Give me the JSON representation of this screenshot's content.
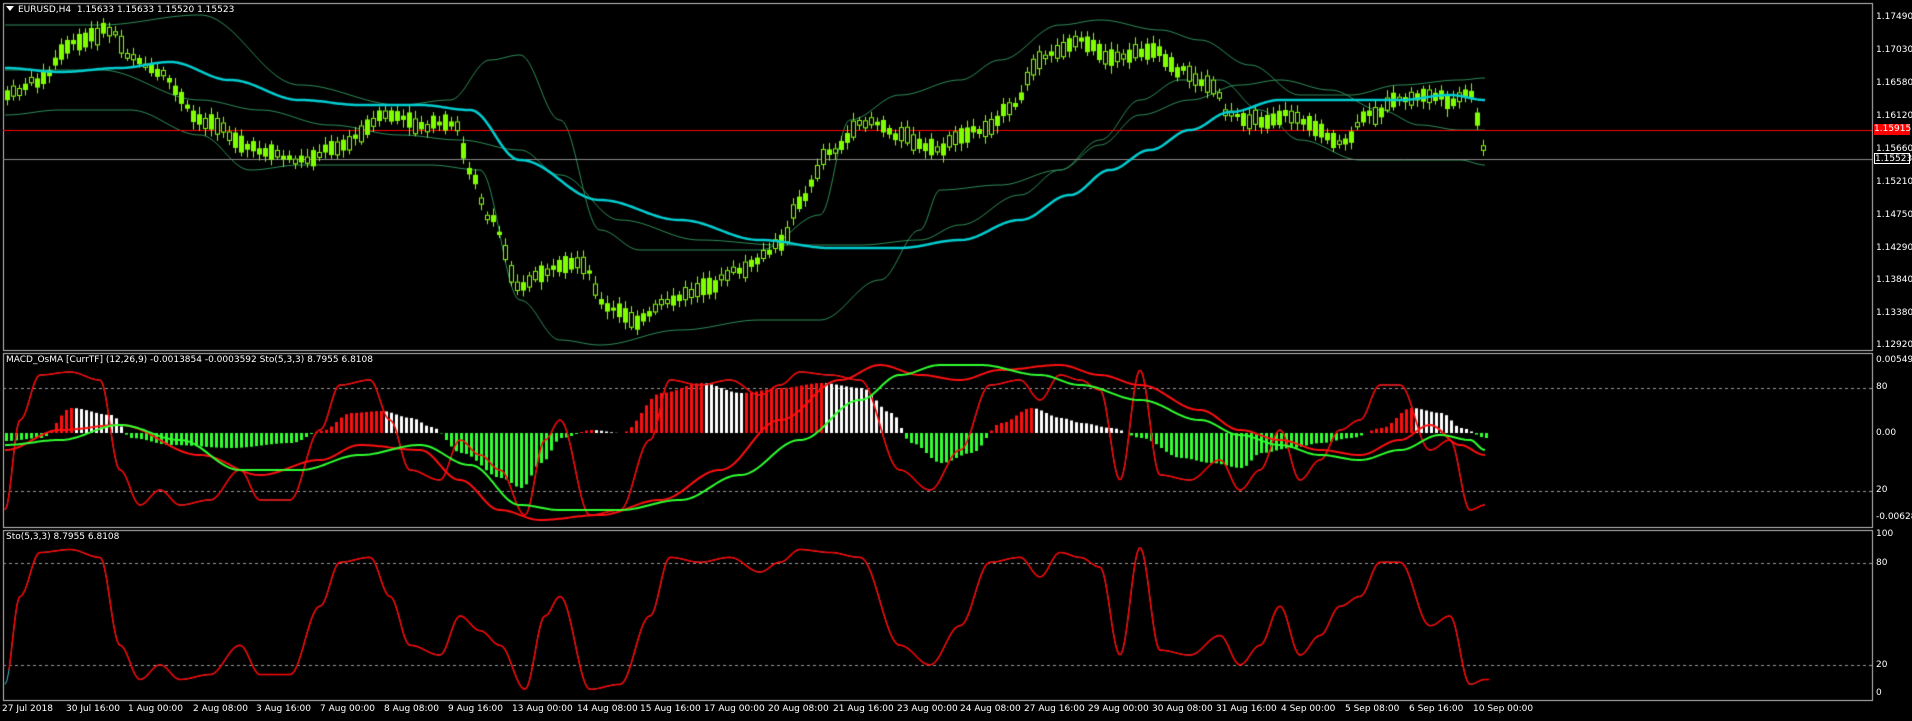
{
  "main_panel": {
    "symbol_label": "EURUSD,H4",
    "ohlc": "1.15633 1.15633 1.15520 1.15523",
    "price_ticks": [
      "1.17490",
      "1.17030",
      "1.16580",
      "1.16120",
      "1.15660",
      "1.15210",
      "1.14750",
      "1.14290",
      "1.13840",
      "1.13380",
      "1.12920"
    ],
    "red_line_price": "1.15915",
    "current_price": "1.15523"
  },
  "macd_panel": {
    "label": "MACD_OsMA [CurrTF] (12,26,9) -0.0013854 -0.0003592  Sto(5,3,3) 8.7955 6.8108",
    "ticks": {
      "top": "0.005497",
      "l80": "80",
      "l0": "0.00",
      "l20": "20",
      "bottom": "-0.006285"
    }
  },
  "sto_panel": {
    "label": "Sto(5,3,3) 8.7955 6.8108",
    "ticks": [
      "100",
      "80",
      "20",
      "0"
    ]
  },
  "time_axis": [
    "27 Jul 2018",
    "30 Jul 16:00",
    "1 Aug 00:00",
    "2 Aug 08:00",
    "3 Aug 16:00",
    "7 Aug 00:00",
    "8 Aug 08:00",
    "9 Aug 16:00",
    "13 Aug 00:00",
    "14 Aug 08:00",
    "15 Aug 16:00",
    "17 Aug 00:00",
    "20 Aug 08:00",
    "21 Aug 16:00",
    "23 Aug 00:00",
    "24 Aug 08:00",
    "27 Aug 16:00",
    "29 Aug 00:00",
    "30 Aug 08:00",
    "31 Aug 16:00",
    "4 Sep 00:00",
    "5 Sep 08:00",
    "6 Sep 16:00",
    "10 Sep 00:00"
  ],
  "colors": {
    "background": "#000000",
    "grid_border": "#c0c0c0",
    "candle_body": "#7fff00",
    "bands": "#2e8b57",
    "ma_line": "#00ced1",
    "red_line": "#ff0000",
    "sto_main": "#40c0d0",
    "sto_signal": "#ff0000",
    "macd_line": "#ff1010",
    "signal_line": "#30ff30"
  }
}
